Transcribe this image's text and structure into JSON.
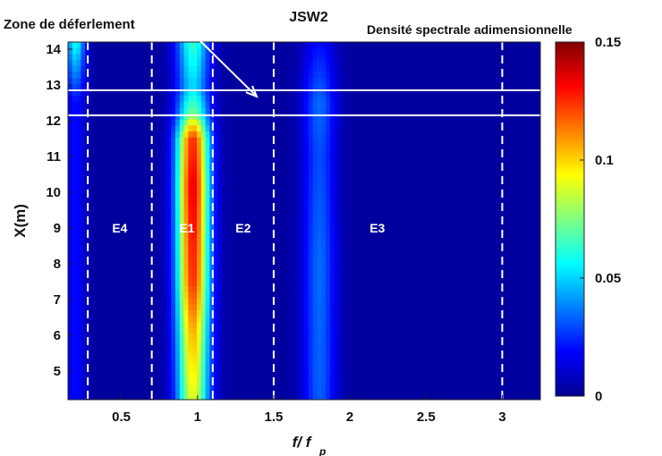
{
  "chart_data": {
    "type": "heatmap",
    "title": "JSW2",
    "xlabel_main": "f/ f",
    "xlabel_sub": "p",
    "ylabel": "X(m)",
    "colorbar_label": "Densité spectrale adimensionnelle",
    "annotation": "Zone de déferlement",
    "xlim": [
      0.15,
      3.25
    ],
    "ylim": [
      4.2,
      14.2
    ],
    "clim": [
      0,
      0.15
    ],
    "colormap": "jet",
    "x_ticks": [
      {
        "value": 0.5,
        "label": "0.5"
      },
      {
        "value": 1,
        "label": "1"
      },
      {
        "value": 1.5,
        "label": "1.5"
      },
      {
        "value": 2,
        "label": "2"
      },
      {
        "value": 2.5,
        "label": "2.5"
      },
      {
        "value": 3,
        "label": "3"
      }
    ],
    "y_ticks": [
      {
        "value": 5,
        "label": "5"
      },
      {
        "value": 6,
        "label": "6"
      },
      {
        "value": 7,
        "label": "7"
      },
      {
        "value": 8,
        "label": "8"
      },
      {
        "value": 9,
        "label": "9"
      },
      {
        "value": 10,
        "label": "10"
      },
      {
        "value": 11,
        "label": "11"
      },
      {
        "value": 12,
        "label": "12"
      },
      {
        "value": 13,
        "label": "13"
      },
      {
        "value": 14,
        "label": "14"
      }
    ],
    "colorbar_ticks": [
      {
        "value": 0,
        "label": "0"
      },
      {
        "value": 0.05,
        "label": "0.05"
      },
      {
        "value": 0.1,
        "label": "0.1"
      },
      {
        "value": 0.15,
        "label": "0.15"
      }
    ],
    "dashed_lines_x": [
      0.28,
      0.7,
      1.1,
      1.5,
      3.0
    ],
    "breaking_zone_y": [
      12.15,
      12.85
    ],
    "zones": [
      {
        "label": "E4",
        "x": 0.49,
        "y": 9.0
      },
      {
        "label": "E1",
        "x": 0.93,
        "y": 9.0
      },
      {
        "label": "E2",
        "x": 1.3,
        "y": 9.0
      },
      {
        "label": "E3",
        "x": 2.18,
        "y": 9.0
      }
    ],
    "spectral_peaks": [
      {
        "name": "primary",
        "x_center": 0.97,
        "x_width": 0.1,
        "value_by_y": [
          [
            4.2,
            0.085
          ],
          [
            6,
            0.1
          ],
          [
            7.5,
            0.12
          ],
          [
            10.2,
            0.13
          ],
          [
            11.5,
            0.12
          ],
          [
            12.2,
            0.07
          ],
          [
            13,
            0.045
          ],
          [
            14.2,
            0.06
          ]
        ]
      },
      {
        "name": "harmonic",
        "x_center": 1.8,
        "x_width": 0.1,
        "value_by_y": [
          [
            4.2,
            0.028
          ],
          [
            8,
            0.03
          ],
          [
            11,
            0.025
          ],
          [
            12.5,
            0.03
          ],
          [
            14.2,
            0.015
          ]
        ]
      },
      {
        "name": "low-frequency",
        "x_center": 0.2,
        "x_width": 0.06,
        "value_by_y": [
          [
            12.5,
            0.015
          ],
          [
            14.2,
            0.055
          ]
        ]
      }
    ]
  }
}
